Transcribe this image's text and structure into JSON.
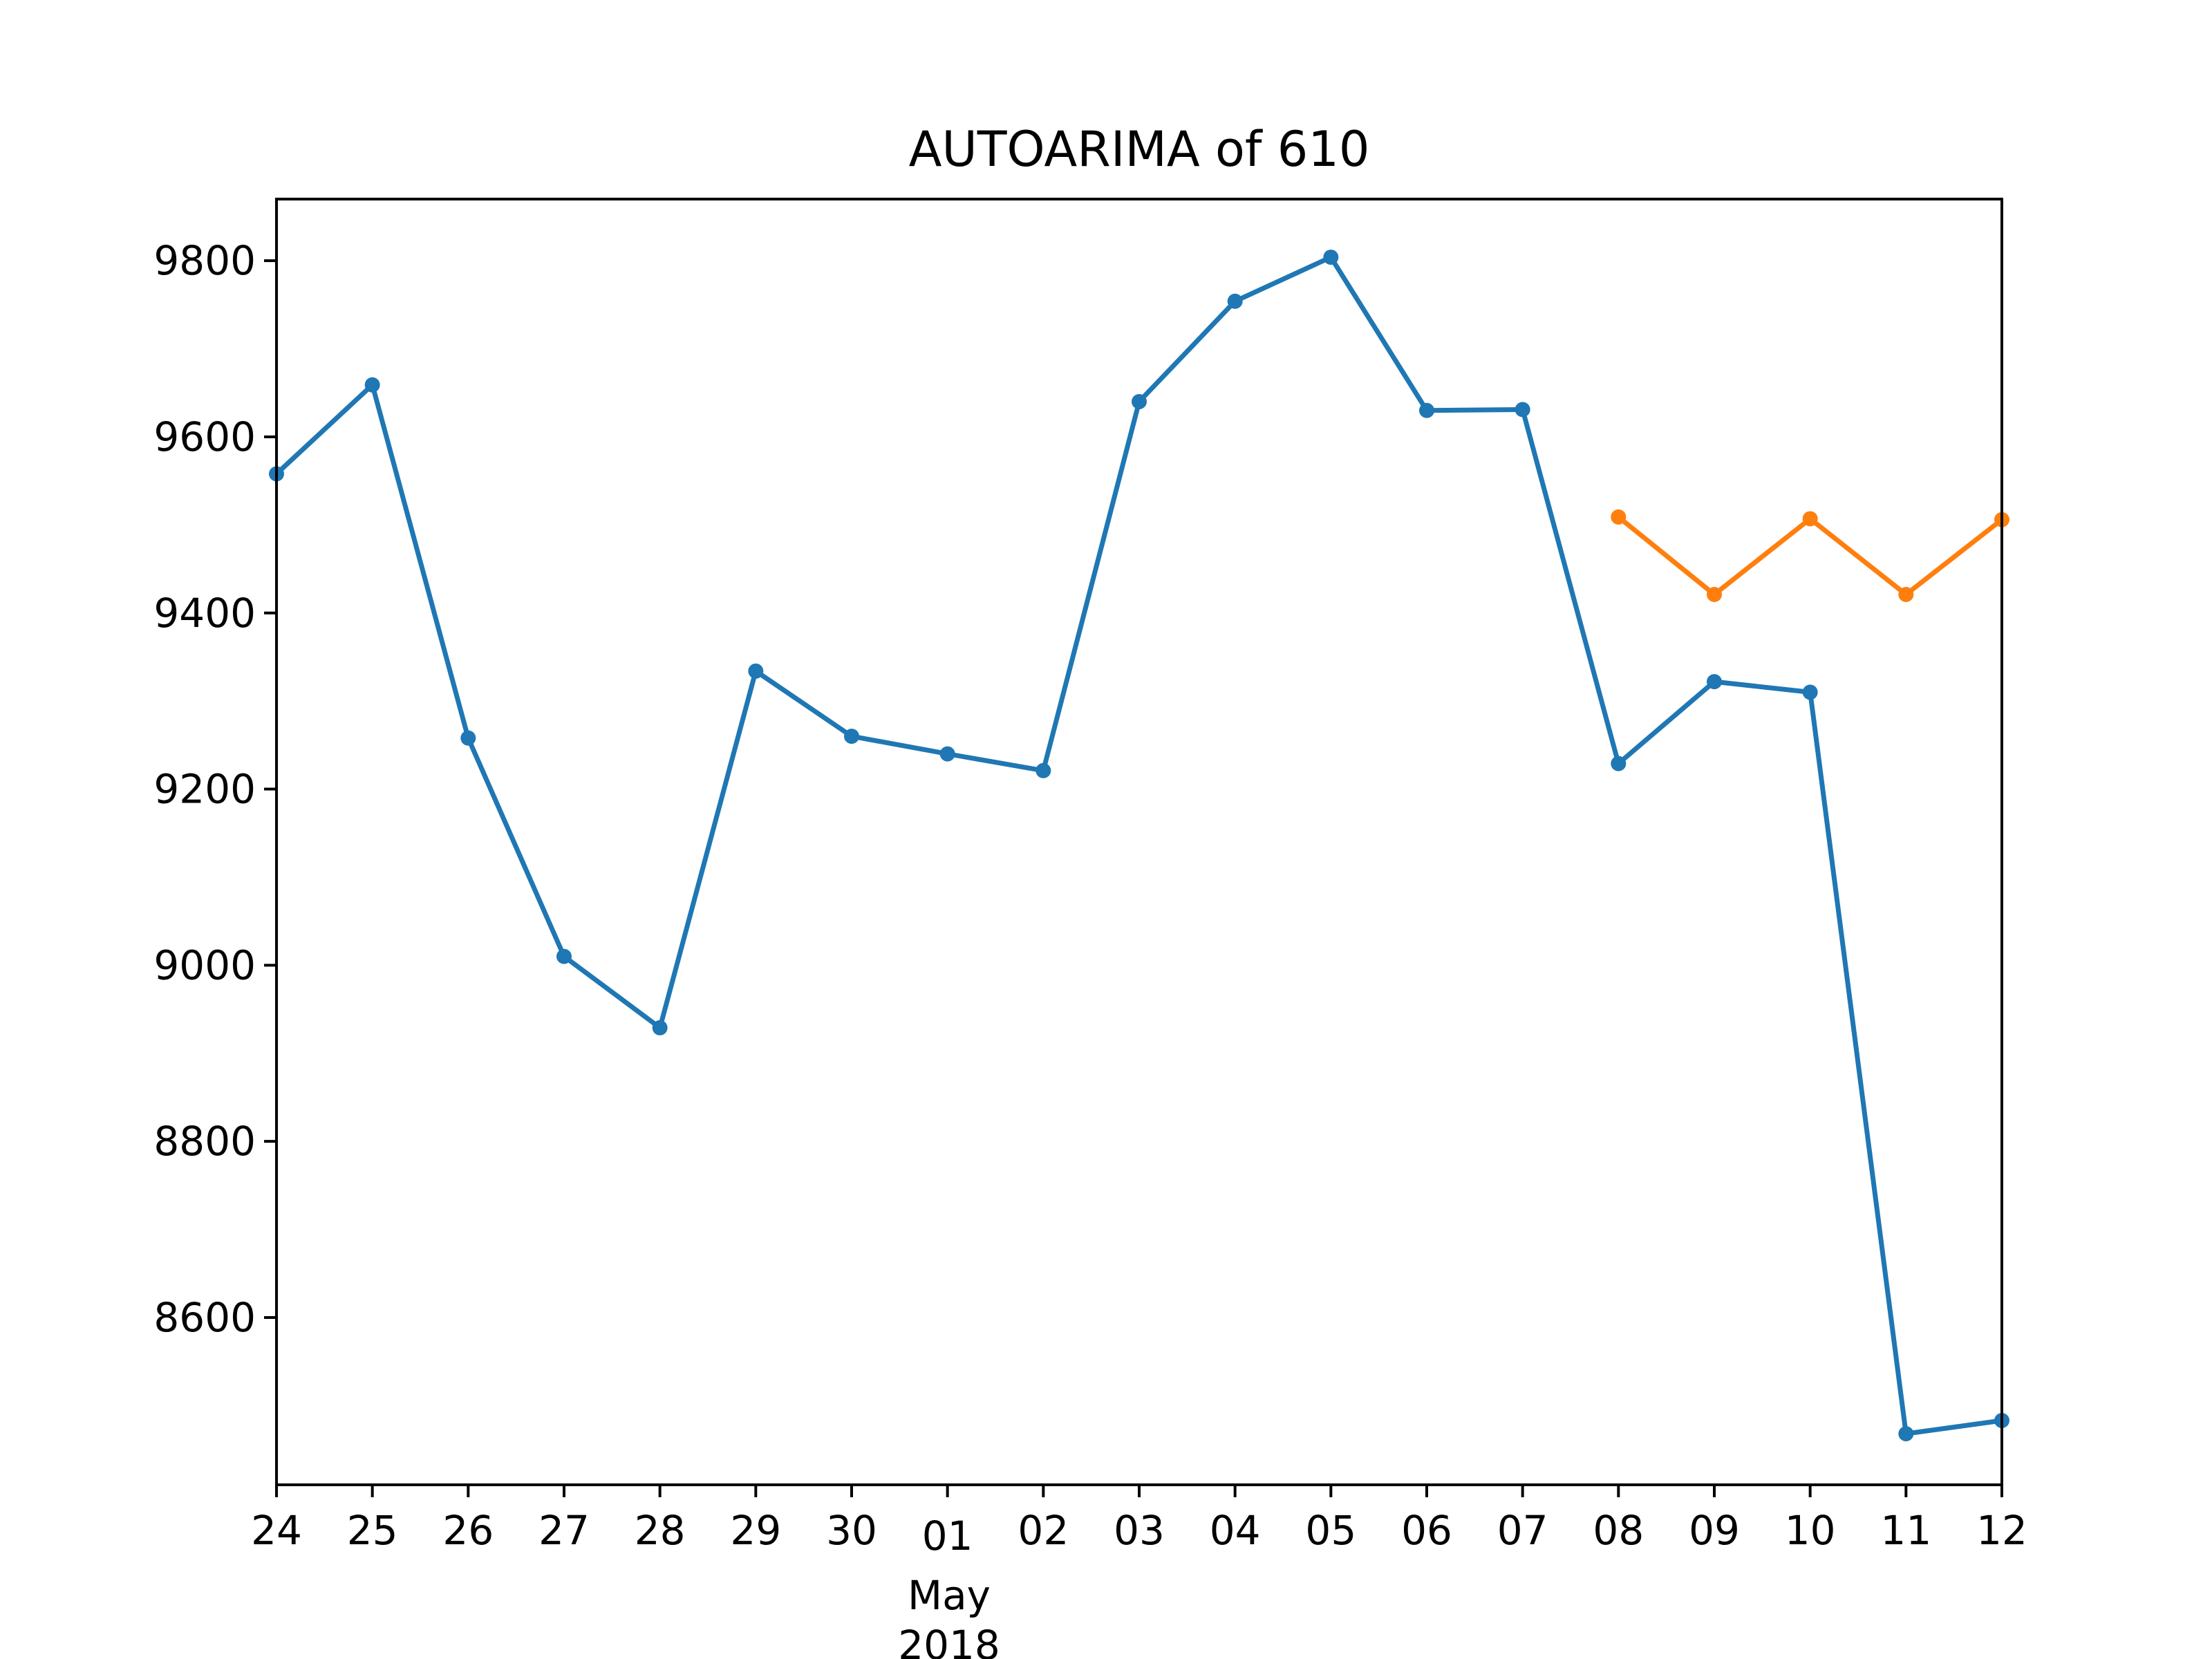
{
  "chart_data": {
    "type": "line",
    "title": "AUTOARIMA of 610",
    "xlabel": "",
    "ylabel": "",
    "grid": false,
    "legend": "none",
    "x_tick_labels": [
      "24",
      "25",
      "26",
      "27",
      "28",
      "29",
      "30",
      "01",
      "02",
      "03",
      "04",
      "05",
      "06",
      "07",
      "08",
      "09",
      "10",
      "11",
      "12"
    ],
    "x_month_label": "May",
    "x_year_label": "2018",
    "x_month_anchor": "01",
    "y_ticks": [
      8600,
      8800,
      9000,
      9200,
      9400,
      9600,
      9800
    ],
    "ylim": [
      8410,
      9870
    ],
    "x_dates": [
      "2018-04-24",
      "2018-04-25",
      "2018-04-26",
      "2018-04-27",
      "2018-04-28",
      "2018-04-29",
      "2018-04-30",
      "2018-05-01",
      "2018-05-02",
      "2018-05-03",
      "2018-05-04",
      "2018-05-05",
      "2018-05-06",
      "2018-05-07",
      "2018-05-08",
      "2018-05-09",
      "2018-05-10",
      "2018-05-11",
      "2018-05-12"
    ],
    "series": [
      {
        "color": "#1f77b4",
        "x": [
          "2018-04-24",
          "2018-04-25",
          "2018-04-26",
          "2018-04-27",
          "2018-04-28",
          "2018-04-29",
          "2018-04-30",
          "2018-05-01",
          "2018-05-02",
          "2018-05-03",
          "2018-05-04",
          "2018-05-05",
          "2018-05-06",
          "2018-05-07",
          "2018-05-08",
          "2018-05-09",
          "2018-05-10",
          "2018-05-11",
          "2018-05-12"
        ],
        "values": [
          9558,
          9659,
          9258,
          9010,
          8929,
          9334,
          9260,
          9240,
          9221,
          9640,
          9754,
          9804,
          9630,
          9631,
          9229,
          9322,
          9310,
          8468,
          8483
        ]
      },
      {
        "color": "#ff7f0e",
        "x": [
          "2018-05-08",
          "2018-05-09",
          "2018-05-10",
          "2018-05-11",
          "2018-05-12"
        ],
        "values": [
          9509,
          9421,
          9507,
          9421,
          9506
        ]
      }
    ]
  }
}
